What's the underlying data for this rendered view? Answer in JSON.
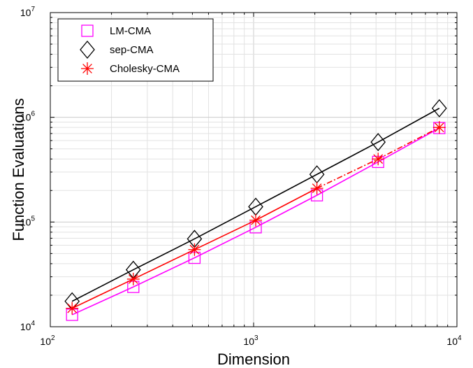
{
  "chart_data": {
    "type": "line",
    "title": "",
    "xlabel": "Dimension",
    "ylabel": "Function Evaluations",
    "xscale": "log",
    "yscale": "log",
    "xlim": [
      100,
      10000
    ],
    "ylim": [
      10000,
      10000000
    ],
    "grid": true,
    "legend_position": "top-left",
    "x_ticks": [
      {
        "value": 100,
        "base": "10",
        "exp": "2"
      },
      {
        "value": 1000,
        "base": "10",
        "exp": "3"
      },
      {
        "value": 10000,
        "base": "10",
        "exp": "4"
      }
    ],
    "y_ticks": [
      {
        "value": 10000,
        "base": "10",
        "exp": "4"
      },
      {
        "value": 100000,
        "base": "10",
        "exp": "5"
      },
      {
        "value": 1000000,
        "base": "10",
        "exp": "6"
      },
      {
        "value": 10000000,
        "base": "10",
        "exp": "7"
      }
    ],
    "series": [
      {
        "name": "LM-CMA",
        "color": "#ff00ff",
        "marker": "square",
        "x": [
          128,
          256,
          512,
          1024,
          2048,
          4096,
          8192
        ],
        "y": [
          13000,
          24000,
          45500,
          89000,
          180000,
          375000,
          790000
        ]
      },
      {
        "name": "sep-CMA",
        "color": "#000000",
        "marker": "diamond",
        "x": [
          128,
          256,
          512,
          1024,
          2048,
          4096,
          8192
        ],
        "y": [
          17500,
          35000,
          69000,
          140000,
          285000,
          580000,
          1220000
        ]
      },
      {
        "name": "Cholesky-CMA",
        "color": "#ff0000",
        "marker": "asterisk",
        "x": [
          128,
          256,
          512,
          1024,
          2048,
          4096,
          8192
        ],
        "y": [
          15000,
          28500,
          54500,
          104000,
          210000,
          400000,
          800000
        ],
        "dashed_from_index": 4
      }
    ]
  }
}
